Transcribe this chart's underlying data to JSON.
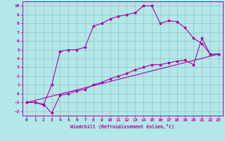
{
  "xlabel": "Windchill (Refroidissement éolien,°C)",
  "xlim": [
    -0.5,
    23.5
  ],
  "ylim": [
    -2.5,
    10.5
  ],
  "xticks": [
    0,
    1,
    2,
    3,
    4,
    5,
    6,
    7,
    8,
    9,
    10,
    11,
    12,
    13,
    14,
    15,
    16,
    17,
    18,
    19,
    20,
    21,
    22,
    23
  ],
  "yticks": [
    -2,
    -1,
    0,
    1,
    2,
    3,
    4,
    5,
    6,
    7,
    8,
    9,
    10
  ],
  "background_color": "#b3e8e8",
  "grid_color": "#90b8b8",
  "line_color": "#aa00aa",
  "line1_x": [
    0,
    1,
    2,
    3,
    4,
    5,
    6,
    7,
    8,
    9,
    10,
    11,
    12,
    13,
    14,
    15,
    16,
    17,
    18,
    19,
    20,
    21,
    22,
    23
  ],
  "line1_y": [
    -1.0,
    -1.0,
    -1.3,
    1.0,
    4.8,
    5.0,
    5.0,
    5.3,
    7.7,
    8.0,
    8.5,
    8.8,
    9.0,
    9.2,
    10.0,
    10.0,
    8.0,
    8.3,
    8.2,
    7.5,
    6.3,
    5.7,
    4.5,
    4.5
  ],
  "line2_x": [
    0,
    1,
    2,
    3,
    4,
    5,
    6,
    7,
    8,
    9,
    10,
    11,
    12,
    13,
    14,
    15,
    16,
    17,
    18,
    19,
    20,
    21,
    22,
    23
  ],
  "line2_y": [
    -1.0,
    -1.0,
    -1.2,
    -2.2,
    -0.2,
    0.0,
    0.3,
    0.5,
    1.0,
    1.3,
    1.7,
    2.0,
    2.3,
    2.7,
    3.0,
    3.3,
    3.3,
    3.5,
    3.7,
    3.8,
    3.3,
    6.3,
    4.5,
    4.5
  ],
  "line3_x": [
    0,
    23
  ],
  "line3_y": [
    -1.0,
    4.5
  ]
}
